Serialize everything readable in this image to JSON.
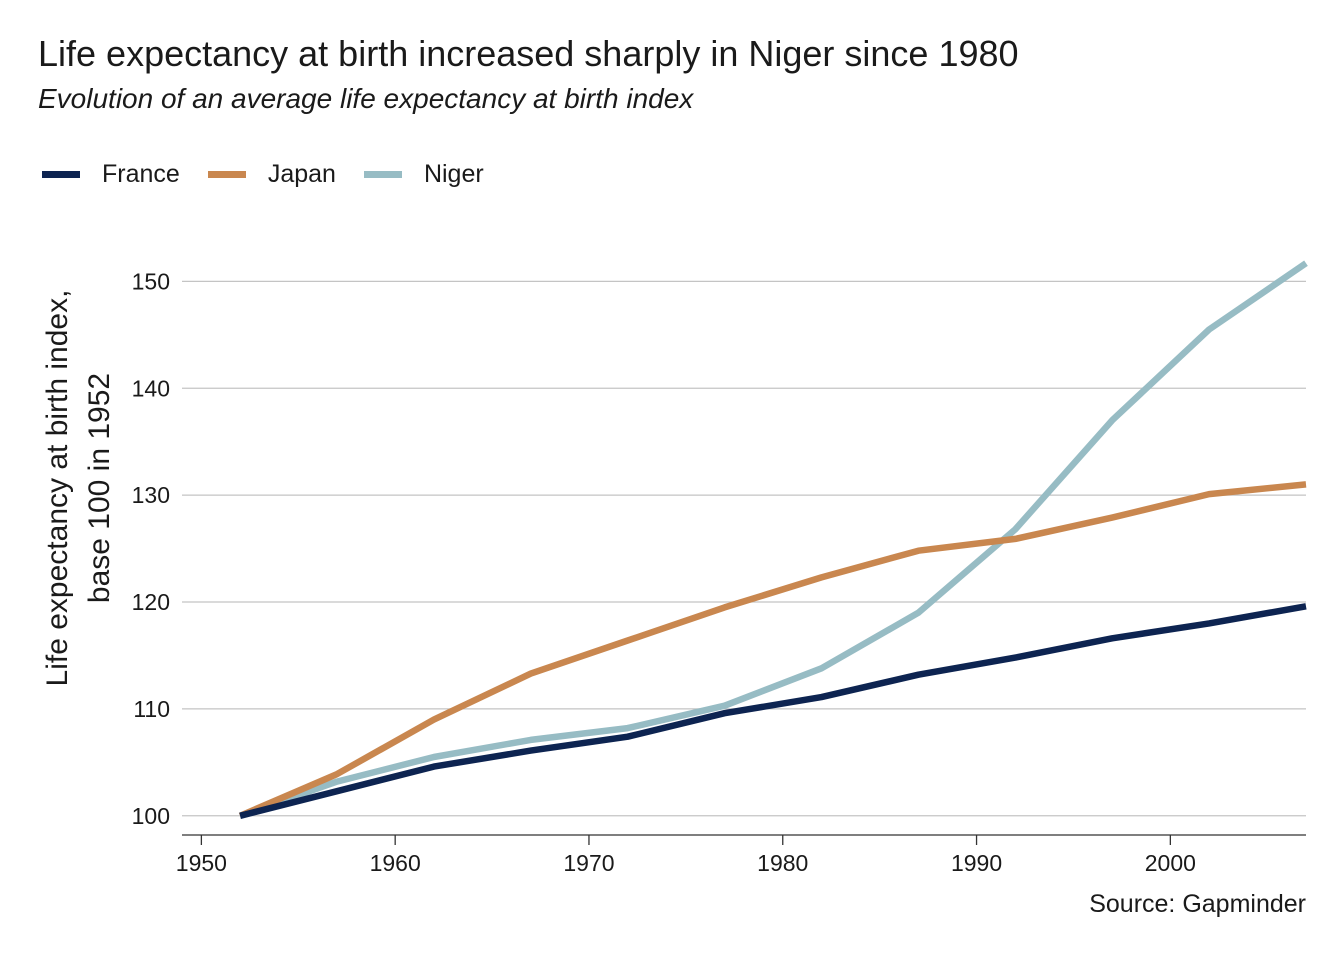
{
  "title": "Life expectancy at birth increased sharply in Niger since 1980",
  "subtitle": "Evolution of an average life expectancy at birth index",
  "source": "Source: Gapminder",
  "chart_data": {
    "type": "line",
    "title": "Life expectancy at birth increased sharply in Niger since 1980",
    "subtitle": "Evolution of an average life expectancy at birth index",
    "xlabel": "",
    "ylabel": [
      "Life expectancy at birth index,",
      "base 100 in 1952"
    ],
    "x": [
      1952,
      1957,
      1962,
      1967,
      1972,
      1977,
      1982,
      1987,
      1992,
      1997,
      2002,
      2007
    ],
    "xlim": [
      1949,
      2007
    ],
    "ylim": [
      98.2,
      152
    ],
    "x_ticks": [
      1950,
      1960,
      1970,
      1980,
      1990,
      2000
    ],
    "y_ticks": [
      100,
      110,
      120,
      130,
      140,
      150
    ],
    "grid": "horizontal",
    "legend_position": "top-left",
    "series": [
      {
        "name": "France",
        "color": "#0d2451",
        "values": [
          100.0,
          102.3,
          104.6,
          106.1,
          107.4,
          109.6,
          111.1,
          113.2,
          114.8,
          116.6,
          118.0,
          119.6
        ]
      },
      {
        "name": "Japan",
        "color": "#c9874f",
        "values": [
          100.0,
          103.9,
          109.0,
          113.3,
          116.4,
          119.5,
          122.3,
          124.8,
          125.9,
          127.9,
          130.1,
          131.0
        ]
      },
      {
        "name": "Niger",
        "color": "#97bcc4",
        "values": [
          100.0,
          103.2,
          105.5,
          107.1,
          108.2,
          110.3,
          113.8,
          119.0,
          126.8,
          137.0,
          145.5,
          151.7
        ]
      }
    ]
  }
}
